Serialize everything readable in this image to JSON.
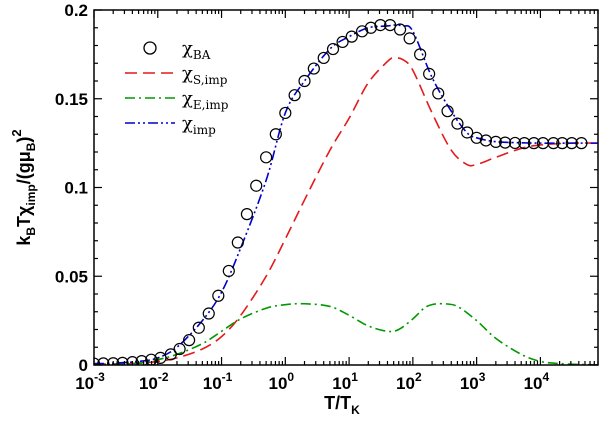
{
  "chart_data": {
    "type": "line",
    "title": "",
    "xlabel": {
      "main": "T/T",
      "sub": "K"
    },
    "ylabel": {
      "parts": [
        {
          "t": "k",
          "s": "base"
        },
        {
          "t": "B",
          "s": "sub"
        },
        {
          "t": "Tχ",
          "s": "base"
        },
        {
          "t": "imp",
          "s": "sub"
        },
        {
          "t": "/(gμ",
          "s": "base"
        },
        {
          "t": "B",
          "s": "sub"
        },
        {
          "t": ")",
          "s": "base"
        },
        {
          "t": "2",
          "s": "sup"
        }
      ]
    },
    "x_scale": "log",
    "xlim": [
      0.001,
      80000
    ],
    "ylim": [
      0,
      0.2
    ],
    "x_ticks": [
      {
        "exp": "-3"
      },
      {
        "exp": "-2"
      },
      {
        "exp": "-1"
      },
      {
        "exp": "0"
      },
      {
        "exp": "1"
      },
      {
        "exp": "2"
      },
      {
        "exp": "3"
      },
      {
        "exp": "4"
      }
    ],
    "y_ticks": [
      {
        "value": 0,
        "label": "0"
      },
      {
        "value": 0.05,
        "label": "0.05"
      },
      {
        "value": 0.1,
        "label": "0.1"
      },
      {
        "value": 0.15,
        "label": "0.15"
      },
      {
        "value": 0.2,
        "label": "0.2"
      }
    ],
    "legend": {
      "position": "top-left"
    },
    "series": [
      {
        "name": {
          "main": "χ",
          "sub": "BA"
        },
        "style": "circles",
        "color": "#000000",
        "x": [
          0.001,
          0.0014,
          0.002,
          0.0028,
          0.004,
          0.0056,
          0.0079,
          0.011,
          0.016,
          0.022,
          0.031,
          0.044,
          0.063,
          0.089,
          0.13,
          0.18,
          0.25,
          0.35,
          0.5,
          0.71,
          1.0,
          1.4,
          2.0,
          2.8,
          4.0,
          5.6,
          7.9,
          11,
          16,
          22,
          31,
          44,
          63,
          89,
          130,
          180,
          250,
          350,
          500,
          710,
          1000,
          1400,
          2000,
          2800,
          4000,
          5600,
          7900,
          11000,
          16000,
          22000,
          31000,
          44000
        ],
        "y": [
          0.0008,
          0.0009,
          0.001,
          0.0012,
          0.0016,
          0.0022,
          0.003,
          0.004,
          0.006,
          0.009,
          0.014,
          0.021,
          0.029,
          0.039,
          0.053,
          0.069,
          0.085,
          0.101,
          0.117,
          0.13,
          0.142,
          0.152,
          0.16,
          0.167,
          0.173,
          0.178,
          0.182,
          0.185,
          0.188,
          0.19,
          0.1915,
          0.1915,
          0.189,
          0.184,
          0.175,
          0.164,
          0.153,
          0.143,
          0.136,
          0.131,
          0.128,
          0.1265,
          0.1257,
          0.1253,
          0.1251,
          0.125,
          0.125,
          0.125,
          0.125,
          0.125,
          0.125,
          0.125
        ]
      },
      {
        "name": {
          "main": "χ",
          "sub": "S,imp"
        },
        "style": "dashed",
        "color": "#e41a1c",
        "x": [
          0.001,
          0.002,
          0.005,
          0.01,
          0.02,
          0.05,
          0.1,
          0.2,
          0.5,
          1,
          2,
          5,
          10,
          20,
          40,
          50,
          70,
          100,
          200,
          400,
          700,
          1000,
          2000,
          5000,
          10000,
          30000,
          80000
        ],
        "y": [
          0.0005,
          0.0006,
          0.001,
          0.002,
          0.004,
          0.009,
          0.016,
          0.028,
          0.05,
          0.071,
          0.093,
          0.121,
          0.139,
          0.159,
          0.171,
          0.173,
          0.172,
          0.166,
          0.142,
          0.121,
          0.113,
          0.113,
          0.117,
          0.122,
          0.124,
          0.125,
          0.125
        ]
      },
      {
        "name": {
          "main": "χ",
          "sub": "E,imp"
        },
        "style": "dashdot",
        "color": "#009900",
        "x": [
          0.001,
          0.002,
          0.005,
          0.01,
          0.02,
          0.05,
          0.1,
          0.2,
          0.5,
          1,
          2,
          5,
          10,
          20,
          40,
          60,
          100,
          150,
          200,
          300,
          500,
          1000,
          2000,
          5000,
          10000,
          20000,
          50000,
          80000
        ],
        "y": [
          0.0002,
          0.0004,
          0.001,
          0.003,
          0.006,
          0.012,
          0.019,
          0.026,
          0.032,
          0.034,
          0.0345,
          0.033,
          0.028,
          0.022,
          0.019,
          0.02,
          0.026,
          0.032,
          0.034,
          0.0345,
          0.033,
          0.025,
          0.015,
          0.006,
          0.002,
          0.0008,
          0.0002,
          0.0001
        ]
      },
      {
        "name": {
          "main": "χ",
          "sub": "imp"
        },
        "style": "dashdotdot",
        "color": "#0000cc",
        "x": [
          0.001,
          0.002,
          0.005,
          0.01,
          0.02,
          0.05,
          0.1,
          0.2,
          0.5,
          1,
          2,
          5,
          10,
          20,
          40,
          50,
          70,
          100,
          200,
          400,
          700,
          1000,
          2000,
          5000,
          10000,
          30000,
          80000
        ],
        "y": [
          0.0008,
          0.001,
          0.002,
          0.004,
          0.01,
          0.025,
          0.041,
          0.066,
          0.104,
          0.142,
          0.16,
          0.178,
          0.185,
          0.19,
          0.191,
          0.1915,
          0.191,
          0.188,
          0.162,
          0.143,
          0.131,
          0.128,
          0.1258,
          0.1252,
          0.125,
          0.125,
          0.125
        ]
      }
    ]
  }
}
